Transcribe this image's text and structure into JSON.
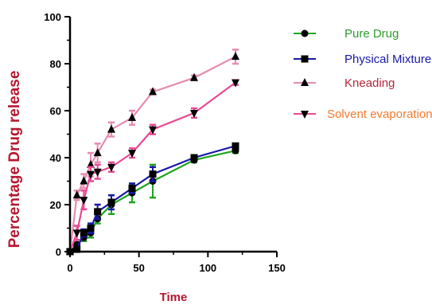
{
  "chart_data": {
    "type": "line",
    "xlabel": "Time",
    "ylabel": "Percentage Drug release",
    "xlim": [
      0,
      150
    ],
    "ylim": [
      0,
      100
    ],
    "x_ticks": [
      "0",
      "50",
      "100",
      "150"
    ],
    "y_ticks": [
      "0",
      "20",
      "40",
      "60",
      "80",
      "100"
    ],
    "grid": false,
    "legend_position": "right",
    "x": [
      0,
      5,
      10,
      15,
      20,
      30,
      45,
      60,
      90,
      120
    ],
    "series": [
      {
        "name": "Pure Drug",
        "color": "#1fa51f",
        "text_color": "#2e9b2e",
        "marker": "circle",
        "values": [
          0,
          3,
          6,
          8,
          14,
          20,
          25,
          30,
          39,
          43
        ],
        "errors": [
          0,
          1,
          1.5,
          2,
          2,
          4,
          4,
          7,
          1,
          1
        ]
      },
      {
        "name": "Physical Mixture",
        "color": "#1818a8",
        "text_color": "#1818a8",
        "marker": "square",
        "values": [
          0,
          1,
          8,
          10,
          17,
          21,
          27,
          33,
          40,
          45
        ],
        "errors": [
          0,
          1,
          1.5,
          2,
          3,
          3,
          2,
          3,
          1,
          1
        ]
      },
      {
        "name": "Kneading",
        "color": "#e58cb0",
        "text_color": "#b3273c",
        "marker": "triangle",
        "values": [
          0,
          24,
          30,
          37,
          42,
          52,
          57,
          68,
          74,
          83
        ],
        "errors": [
          0,
          2,
          3,
          5,
          4,
          3,
          3,
          1,
          1,
          3
        ]
      },
      {
        "name": "Solvent evaporation",
        "color": "#e84a93",
        "text_color": "#f47a2e",
        "marker": "triangle-down",
        "values": [
          0,
          8,
          22,
          33,
          34,
          36,
          42,
          52,
          59,
          72
        ],
        "errors": [
          0,
          3,
          4,
          3,
          3,
          2,
          2,
          2,
          2,
          1
        ]
      }
    ]
  }
}
